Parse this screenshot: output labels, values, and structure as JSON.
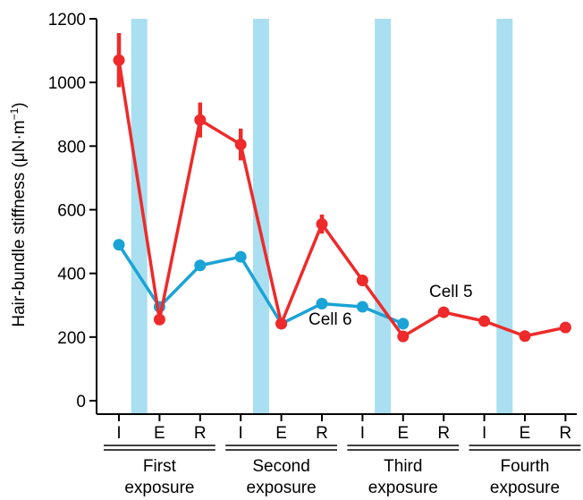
{
  "chart_data": {
    "type": "line",
    "ylabel": "Hair-bundle stiffness (μN·m",
    "ylabel_sup": "−1",
    "ylabel_tail": ")",
    "ylim": [
      0,
      1200
    ],
    "yticks": [
      0,
      200,
      400,
      600,
      800,
      1000,
      1200
    ],
    "x_tick_labels": [
      "I",
      "E",
      "R",
      "I",
      "E",
      "R",
      "I",
      "E",
      "R",
      "I",
      "E",
      "R"
    ],
    "groups": [
      {
        "line1": "First",
        "line2": "exposure",
        "start": 0,
        "end": 2
      },
      {
        "line1": "Second",
        "line2": "exposure",
        "start": 3,
        "end": 5
      },
      {
        "line1": "Third",
        "line2": "exposure",
        "start": 6,
        "end": 8
      },
      {
        "line1": "Fourth",
        "line2": "exposure",
        "start": 9,
        "end": 11
      }
    ],
    "exposure_bars": [
      0.5,
      3.5,
      6.5,
      9.5
    ],
    "exposure_bar_color": "#a9dff0",
    "grid": false,
    "legend": "none",
    "series": [
      {
        "name": "Cell 5",
        "color": "#ee2a2a",
        "x": [
          0,
          1,
          2,
          3,
          4,
          5,
          6,
          7,
          8,
          9,
          10,
          11
        ],
        "values": [
          1070,
          255,
          882,
          805,
          242,
          555,
          378,
          202,
          278,
          250,
          203,
          230
        ],
        "errors": [
          85,
          0,
          55,
          50,
          0,
          30,
          0,
          0,
          0,
          0,
          0,
          0
        ]
      },
      {
        "name": "Cell 6",
        "color": "#1aa3d6",
        "x": [
          0,
          1,
          2,
          3,
          4,
          5,
          6,
          7
        ],
        "values": [
          490,
          295,
          425,
          452,
          242,
          305,
          295,
          242
        ],
        "errors": [
          0,
          0,
          0,
          0,
          0,
          0,
          0,
          0
        ]
      }
    ]
  }
}
